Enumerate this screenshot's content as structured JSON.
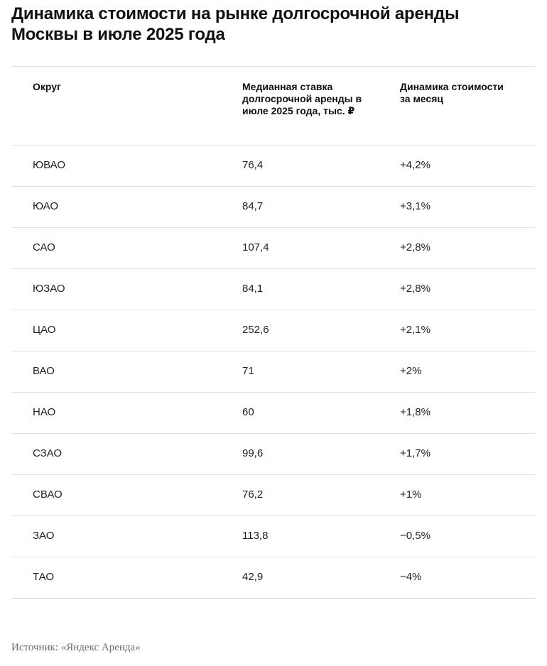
{
  "title": "Динамика стоимости на рынке долгосрочной аренды Москвы в июле 2025 года",
  "table": {
    "headers": {
      "district": "Округ",
      "median_rate": "Медианная ставка долгосрочной аренды в июле 2025 года, тыс. ₽",
      "monthly_change": "Динамика стоимости за месяц"
    },
    "rows": [
      {
        "district": "ЮВАО",
        "median_rate": "76,4",
        "monthly_change": "+4,2%"
      },
      {
        "district": "ЮАО",
        "median_rate": "84,7",
        "monthly_change": "+3,1%"
      },
      {
        "district": "САО",
        "median_rate": "107,4",
        "monthly_change": "+2,8%"
      },
      {
        "district": "ЮЗАО",
        "median_rate": "84,1",
        "monthly_change": "+2,8%"
      },
      {
        "district": "ЦАО",
        "median_rate": "252,6",
        "monthly_change": "+2,1%"
      },
      {
        "district": "ВАО",
        "median_rate": "71",
        "monthly_change": "+2%"
      },
      {
        "district": "НАО",
        "median_rate": "60",
        "monthly_change": "+1,8%"
      },
      {
        "district": "СЗАО",
        "median_rate": "99,6",
        "monthly_change": "+1,7%"
      },
      {
        "district": "СВАО",
        "median_rate": "76,2",
        "monthly_change": "+1%"
      },
      {
        "district": "ЗАО",
        "median_rate": "113,8",
        "monthly_change": "−0,5%"
      },
      {
        "district": "ТАО",
        "median_rate": "42,9",
        "monthly_change": "−4%"
      }
    ]
  },
  "source": "Источник: «Яндекс Аренда»"
}
